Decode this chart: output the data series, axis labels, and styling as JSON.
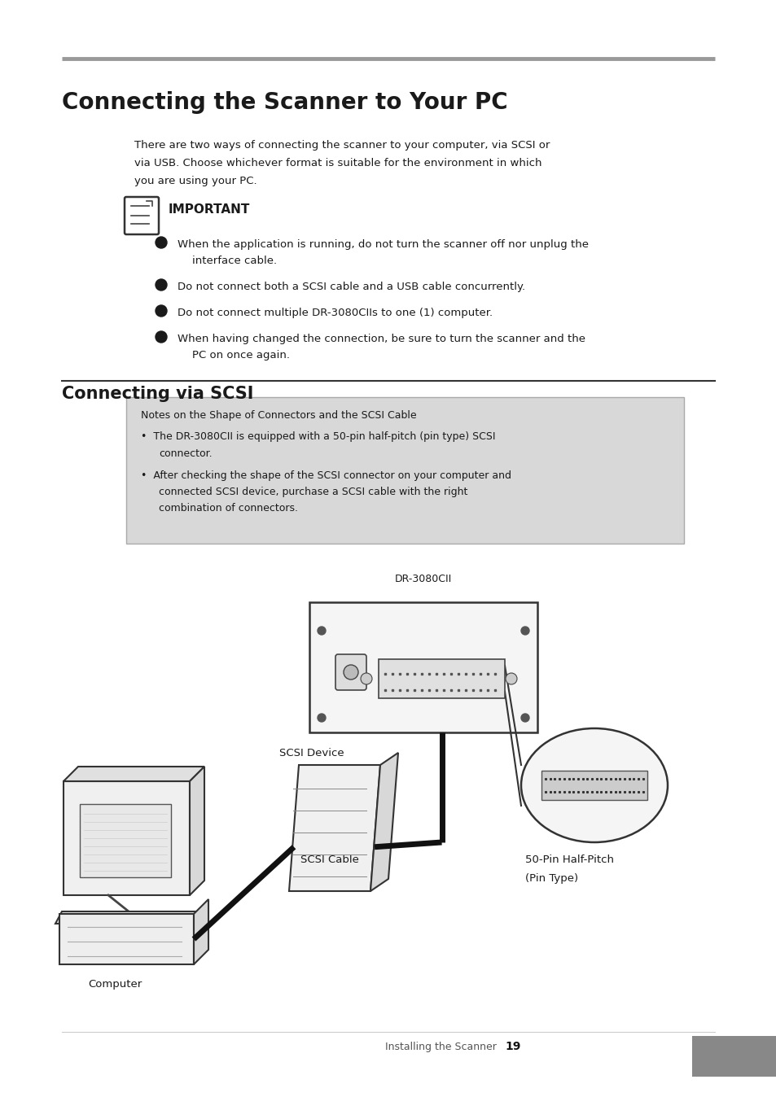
{
  "bg_color": "#ffffff",
  "title_main": "Connecting the Scanner to Your PC",
  "body_text_line1": "There are two ways of connecting the scanner to your computer, via SCSI or",
  "body_text_line2": "via USB. Choose whichever format is suitable for the environment in which",
  "body_text_line3": "you are using your PC.",
  "important_label": "IMPORTANT",
  "bullet1_line1": "When the application is running, do not turn the scanner off nor unplug the",
  "bullet1_line2": "interface cable.",
  "bullet2": "Do not connect both a SCSI cable and a USB cable concurrently.",
  "bullet3": "Do not connect multiple DR-3080CIIs to one (1) computer.",
  "bullet4_line1": "When having changed the connection, be sure to turn the scanner and the",
  "bullet4_line2": "PC on once again.",
  "section2_title": "Connecting via SCSI",
  "note_title": "Notes on the Shape of Connectors and the SCSI Cable",
  "note_bullet1_line1": "The DR-3080CII is equipped with a 50-pin half-pitch (pin type) SCSI",
  "note_bullet1_line2": "connector.",
  "note_bullet2_line1": "After checking the shape of the SCSI connector on your computer and",
  "note_bullet2_line2": "connected SCSI device, purchase a SCSI cable with the right",
  "note_bullet2_line3": "combination of connectors.",
  "dr_label": "DR-3080CII",
  "scsi_device_label": "SCSI Device",
  "computer_label": "Computer",
  "scsi_cable_label": "SCSI Cable",
  "pin_label_line1": "50-Pin Half-Pitch",
  "pin_label_line2": "(Pin Type)",
  "footer_text": "Installing the Scanner",
  "footer_page": "19",
  "top_bar_color": "#999999",
  "text_color": "#1a1a1a",
  "gray_color": "#555555"
}
